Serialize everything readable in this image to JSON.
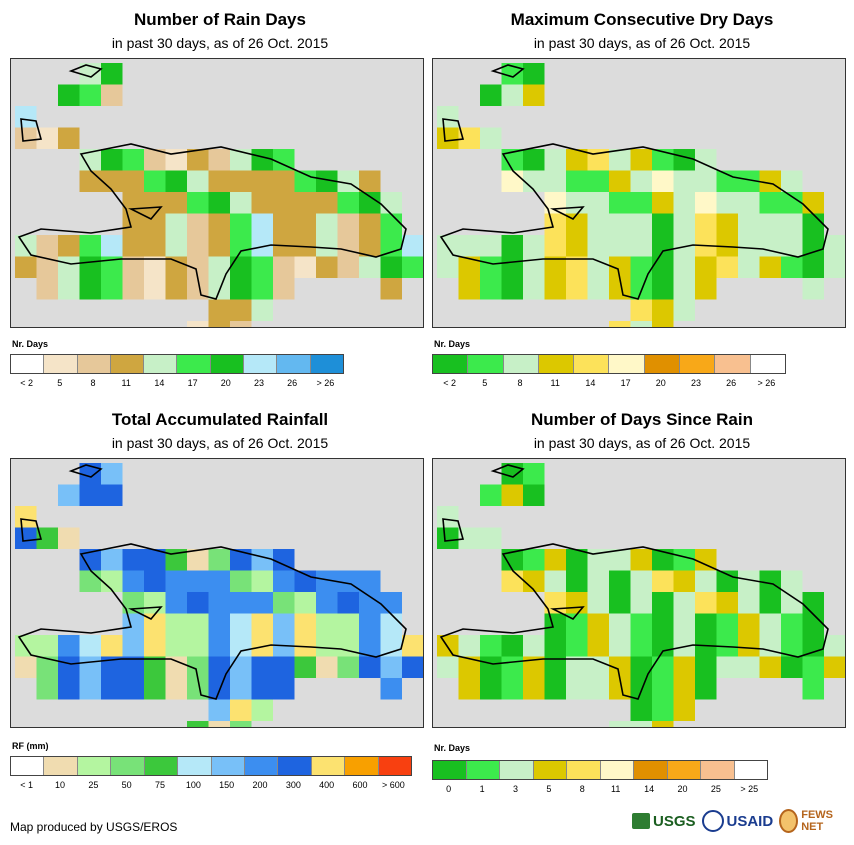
{
  "panels": [
    {
      "id": "rain-days",
      "title": "Number of Rain Days",
      "subtitle": "in past 30 days, as of 26 Oct. 2015",
      "legend_title": "Nr. Days",
      "legend_labels": [
        "< 2",
        "5",
        "8",
        "11",
        "14",
        "17",
        "20",
        "23",
        "26",
        "> 26"
      ],
      "legend_colors": [
        "#ffffff",
        "#f5e4c8",
        "#e6c89a",
        "#cfa640",
        "#c7f0c7",
        "#3cea4c",
        "#18c020",
        "#b5e8f8",
        "#63b8f0",
        "#1e8fd8"
      ]
    },
    {
      "id": "max-dry-days",
      "title": "Maximum Consecutive Dry Days",
      "subtitle": "in past 30 days, as of 26 Oct. 2015",
      "legend_title": "Nr. Days",
      "legend_labels": [
        "< 2",
        "5",
        "8",
        "11",
        "14",
        "17",
        "20",
        "23",
        "26",
        "> 26"
      ],
      "legend_colors": [
        "#18c020",
        "#3cea4c",
        "#c7f0c7",
        "#dcc800",
        "#fce25a",
        "#fff8c8",
        "#e09000",
        "#f8a818",
        "#f8c090",
        "#ffffff"
      ]
    },
    {
      "id": "total-rainfall",
      "title": "Total Accumulated Rainfall",
      "subtitle": "in past 30 days, as of 26 Oct. 2015",
      "legend_title": "RF (mm)",
      "legend_labels": [
        "< 1",
        "10",
        "25",
        "50",
        "75",
        "100",
        "150",
        "200",
        "300",
        "400",
        "600",
        "> 600"
      ],
      "legend_colors": [
        "#ffffff",
        "#f0dcb0",
        "#b4f5a0",
        "#78e278",
        "#3cc83c",
        "#b5e8f8",
        "#78c0f8",
        "#3c8ef0",
        "#1e64e0",
        "#fce270",
        "#f8a000",
        "#f84010"
      ]
    },
    {
      "id": "days-since-rain",
      "title": "Number of Days Since Rain",
      "subtitle": "in past 30 days, as of 26 Oct. 2015",
      "legend_title": "Nr. Days",
      "legend_labels": [
        "0",
        "1",
        "3",
        "5",
        "8",
        "11",
        "14",
        "20",
        "25",
        "> 25"
      ],
      "legend_colors": [
        "#18c020",
        "#3cea4c",
        "#c7f0c7",
        "#dcc800",
        "#fce25a",
        "#fff8c8",
        "#e09000",
        "#f8a818",
        "#f8c090",
        "#ffffff"
      ]
    }
  ],
  "footer": "Map produced by USGS/EROS",
  "logos": {
    "usgs": "USGS",
    "usaid": "USAID",
    "fews": "FEWS NET"
  }
}
